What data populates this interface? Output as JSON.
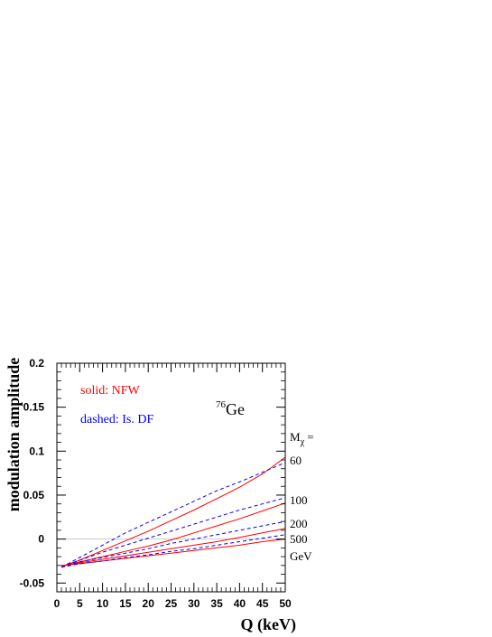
{
  "chart_data": {
    "type": "line",
    "xlabel": "Q (keV)",
    "ylabel": "modulation  amplitude",
    "xlim": [
      0,
      50
    ],
    "ylim": [
      -0.06,
      0.2
    ],
    "xticks": [
      "0",
      "5",
      "10",
      "15",
      "20",
      "25",
      "30",
      "35",
      "40",
      "45",
      "50"
    ],
    "yticks": [
      "-0.05",
      "0",
      "0.05",
      "0.1",
      "0.15",
      "0.2"
    ],
    "grid": false,
    "reference_line": 0,
    "legend": {
      "solid": "solid: NFW",
      "dashed": "dashed: Is. DF",
      "placement": "top-left"
    },
    "isotope": {
      "mass": "76",
      "element": "Ge"
    },
    "mass_label": {
      "symbol": "M",
      "subscript": "χ",
      "suffix": " ="
    },
    "mass_values": [
      "60",
      "100",
      "200",
      "500"
    ],
    "unit_label": "GeV",
    "colors": {
      "solid": "#ff0000",
      "dashed": "#0000ff"
    },
    "series": [
      {
        "mass": "60",
        "style": "solid",
        "x": [
          1,
          5,
          10,
          15,
          20,
          25,
          30,
          35,
          40,
          45,
          50
        ],
        "y": [
          -0.031,
          -0.024,
          -0.013,
          -0.002,
          0.009,
          0.021,
          0.033,
          0.046,
          0.059,
          0.074,
          0.093
        ]
      },
      {
        "mass": "60",
        "style": "dashed",
        "x": [
          1,
          5,
          10,
          15,
          20,
          25,
          30,
          35,
          40,
          45,
          50
        ],
        "y": [
          -0.032,
          -0.021,
          -0.007,
          0.007,
          0.019,
          0.031,
          0.043,
          0.055,
          0.065,
          0.076,
          0.087
        ]
      },
      {
        "mass": "100",
        "style": "solid",
        "x": [
          1,
          5,
          10,
          15,
          20,
          25,
          30,
          35,
          40,
          45,
          50
        ],
        "y": [
          -0.031,
          -0.026,
          -0.02,
          -0.014,
          -0.008,
          -0.001,
          0.007,
          0.015,
          0.023,
          0.032,
          0.041
        ]
      },
      {
        "mass": "100",
        "style": "dashed",
        "x": [
          1,
          5,
          10,
          15,
          20,
          25,
          30,
          35,
          40,
          45,
          50
        ],
        "y": [
          -0.032,
          -0.024,
          -0.015,
          -0.007,
          0.001,
          0.009,
          0.017,
          0.025,
          0.033,
          0.04,
          0.047
        ]
      },
      {
        "mass": "200",
        "style": "solid",
        "x": [
          1,
          5,
          10,
          15,
          20,
          25,
          30,
          35,
          40,
          45,
          50
        ],
        "y": [
          -0.031,
          -0.027,
          -0.023,
          -0.019,
          -0.015,
          -0.011,
          -0.007,
          -0.003,
          0.002,
          0.007,
          0.012
        ]
      },
      {
        "mass": "200",
        "style": "dashed",
        "x": [
          1,
          5,
          10,
          15,
          20,
          25,
          30,
          35,
          40,
          45,
          50
        ],
        "y": [
          -0.032,
          -0.026,
          -0.021,
          -0.016,
          -0.011,
          -0.005,
          0.0,
          0.005,
          0.01,
          0.015,
          0.02
        ]
      },
      {
        "mass": "500",
        "style": "solid",
        "x": [
          1,
          5,
          10,
          15,
          20,
          25,
          30,
          35,
          40,
          45,
          50
        ],
        "y": [
          -0.03,
          -0.028,
          -0.025,
          -0.022,
          -0.019,
          -0.016,
          -0.013,
          -0.01,
          -0.007,
          -0.003,
          0.0
        ]
      },
      {
        "mass": "500",
        "style": "dashed",
        "x": [
          1,
          5,
          10,
          15,
          20,
          25,
          30,
          35,
          40,
          45,
          50
        ],
        "y": [
          -0.032,
          -0.028,
          -0.025,
          -0.021,
          -0.018,
          -0.014,
          -0.011,
          -0.007,
          -0.003,
          0.001,
          0.005
        ]
      }
    ]
  }
}
